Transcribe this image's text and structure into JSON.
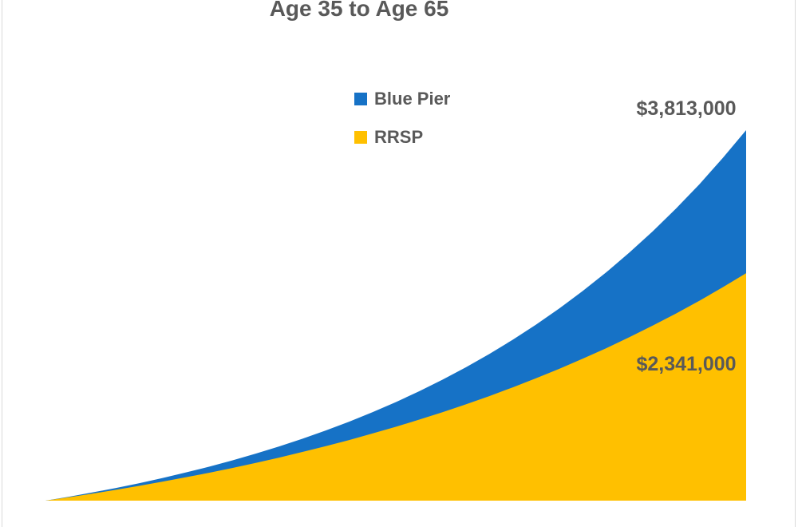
{
  "page": {
    "background": "#FFFFFF",
    "border_color": "#D9D9D9"
  },
  "chart_data": {
    "type": "area",
    "title": "Age 35 to Age 65",
    "text_color": "#595959",
    "grid": false,
    "axes_visible": false,
    "legend_position": "top-center, vertical stack",
    "overlap": "overlaid (not stacked), blue behind yellow",
    "xlim": [
      35,
      65
    ],
    "ylim": [
      0,
      3813000
    ],
    "x": [
      35,
      36,
      37,
      38,
      39,
      40,
      41,
      42,
      43,
      44,
      45,
      46,
      47,
      48,
      49,
      50,
      51,
      52,
      53,
      54,
      55,
      56,
      57,
      58,
      59,
      60,
      61,
      62,
      63,
      64,
      65
    ],
    "series": [
      {
        "name": "Blue Pier",
        "color": "#1672C6",
        "end_value": 3813000,
        "end_label": "$3,813,000",
        "values": [
          0,
          40000,
          84000,
          130000,
          179000,
          232000,
          289000,
          349000,
          414000,
          484000,
          558000,
          637000,
          722000,
          813000,
          910000,
          1014000,
          1126000,
          1245000,
          1372000,
          1509000,
          1655000,
          1811000,
          1978000,
          2157000,
          2348000,
          2553000,
          2772000,
          3007000,
          3257000,
          3526000,
          3813000
        ]
      },
      {
        "name": "RRSP",
        "color": "#FFC000",
        "end_value": 2341000,
        "end_label": "$2,341,000",
        "values": [
          0,
          35000,
          72000,
          111000,
          152000,
          195000,
          240000,
          287000,
          336000,
          389000,
          443000,
          501000,
          561000,
          624000,
          691000,
          760000,
          834000,
          910000,
          991000,
          1076000,
          1165000,
          1259000,
          1357000,
          1460000,
          1568000,
          1682000,
          1801000,
          1926000,
          2058000,
          2196000,
          2341000
        ]
      }
    ]
  }
}
